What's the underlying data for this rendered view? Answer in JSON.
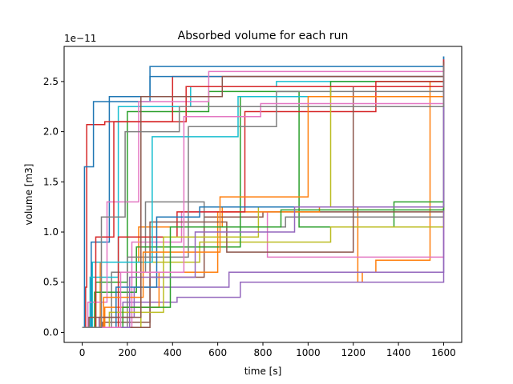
{
  "chart_data": {
    "type": "line",
    "title": "Absorbed volume for each run",
    "xlabel": "time [s]",
    "ylabel": "volume [m3]",
    "y_offset_label": "1e−11",
    "xlim": [
      -80,
      1680
    ],
    "ylim": [
      -0.1,
      2.85
    ],
    "y_scale_note": "values in units of 1e-11 m3",
    "x_ticks": [
      0,
      200,
      400,
      600,
      800,
      1000,
      1200,
      1400,
      1600
    ],
    "x_tick_labels": [
      "0",
      "200",
      "400",
      "600",
      "800",
      "1000",
      "1200",
      "1400",
      "1600"
    ],
    "y_ticks": [
      0.0,
      0.5,
      1.0,
      1.5,
      2.0,
      2.5
    ],
    "y_tick_labels": [
      "0.0",
      "0.5",
      "1.0",
      "1.5",
      "2.0",
      "2.5"
    ],
    "grid": false,
    "legend": "none",
    "palette": [
      "#1f77b4",
      "#ff7f0e",
      "#2ca02c",
      "#d62728",
      "#9467bd",
      "#8c564b",
      "#e377c2",
      "#7f7f7f",
      "#bcbd22",
      "#17becf"
    ],
    "series": [
      {
        "x": [
          0,
          40,
          120,
          300,
          1600
        ],
        "y": [
          0.05,
          0.9,
          2.35,
          2.65,
          2.75
        ]
      },
      {
        "x": [
          0,
          80,
          250,
          620,
          1220,
          1240,
          1300,
          1540,
          1600
        ],
        "y": [
          0.05,
          0.7,
          1.05,
          1.25,
          0.5,
          0.6,
          0.72,
          2.5,
          2.7
        ]
      },
      {
        "x": [
          0,
          60,
          200,
          560,
          960,
          1380,
          1600
        ],
        "y": [
          0.05,
          0.5,
          2.2,
          2.4,
          1.05,
          1.3,
          1.3
        ]
      },
      {
        "x": [
          0,
          15,
          20,
          100,
          400,
          1600
        ],
        "y": [
          0.05,
          0.45,
          2.07,
          2.1,
          2.55,
          2.7
        ]
      },
      {
        "x": [
          0,
          180,
          420,
          700,
          1600
        ],
        "y": [
          0.05,
          0.3,
          0.35,
          0.5,
          1.24
        ]
      },
      {
        "x": [
          0,
          90,
          300,
          540,
          800,
          1600
        ],
        "y": [
          0.05,
          0.1,
          0.55,
          1.15,
          1.2,
          2.7
        ]
      },
      {
        "x": [
          0,
          220,
          440,
          820,
          1600
        ],
        "y": [
          0.05,
          0.9,
          1.2,
          0.75,
          1.2
        ]
      },
      {
        "x": [
          0,
          130,
          280,
          540,
          900,
          1600
        ],
        "y": [
          0.05,
          0.6,
          1.3,
          1.05,
          1.15,
          1.22
        ]
      },
      {
        "x": [
          0,
          260,
          520,
          1100,
          1600
        ],
        "y": [
          0.05,
          0.7,
          0.9,
          1.05,
          1.28
        ]
      },
      {
        "x": [
          0,
          35,
          160,
          480,
          860,
          1600
        ],
        "y": [
          0.05,
          0.55,
          2.25,
          2.45,
          2.5,
          2.55
        ]
      },
      {
        "x": [
          0,
          10,
          50,
          300,
          1600
        ],
        "y": [
          0.05,
          1.65,
          2.3,
          2.55,
          2.75
        ]
      },
      {
        "x": [
          0,
          100,
          340,
          600,
          1050,
          1600
        ],
        "y": [
          0.05,
          0.25,
          0.6,
          1.2,
          1.25,
          2.6
        ]
      },
      {
        "x": [
          0,
          55,
          240,
          700,
          1100,
          1600
        ],
        "y": [
          0.05,
          0.4,
          0.85,
          2.35,
          2.5,
          2.6
        ]
      },
      {
        "x": [
          0,
          160,
          420,
          720,
          1300,
          1600
        ],
        "y": [
          0.05,
          0.95,
          1.2,
          2.2,
          2.5,
          2.7
        ]
      },
      {
        "x": [
          0,
          75,
          230,
          650,
          1600
        ],
        "y": [
          0.05,
          0.15,
          0.45,
          0.6,
          1.23
        ]
      },
      {
        "x": [
          0,
          300,
          640,
          1200,
          1600
        ],
        "y": [
          0.05,
          1.1,
          0.8,
          2.45,
          2.65
        ]
      },
      {
        "x": [
          0,
          25,
          110,
          250,
          560,
          1600
        ],
        "y": [
          0.05,
          0.3,
          1.3,
          2.3,
          2.6,
          2.72
        ]
      },
      {
        "x": [
          0,
          200,
          470,
          860,
          1600
        ],
        "y": [
          0.05,
          0.75,
          2.05,
          2.4,
          2.62
        ]
      },
      {
        "x": [
          0,
          120,
          360,
          780,
          1100,
          1600
        ],
        "y": [
          0.05,
          0.2,
          0.95,
          1.25,
          2.45,
          2.58
        ]
      },
      {
        "x": [
          0,
          45,
          310,
          690,
          1600
        ],
        "y": [
          0.05,
          0.7,
          1.95,
          2.35,
          2.52
        ]
      },
      {
        "x": [
          0,
          150,
          330,
          520,
          1500,
          1600
        ],
        "y": [
          0.05,
          0.45,
          1.15,
          1.25,
          1.25,
          2.55
        ]
      },
      {
        "x": [
          0,
          95,
          270,
          610,
          1000,
          1600
        ],
        "y": [
          0.05,
          0.35,
          0.8,
          1.35,
          2.35,
          2.55
        ]
      },
      {
        "x": [
          0,
          180,
          390,
          880,
          1600
        ],
        "y": [
          0.05,
          0.25,
          1.05,
          1.22,
          1.28
        ]
      },
      {
        "x": [
          0,
          60,
          140,
          460,
          1600
        ],
        "y": [
          0.05,
          0.95,
          2.1,
          2.45,
          2.72
        ]
      },
      {
        "x": [
          0,
          210,
          500,
          940,
          1600
        ],
        "y": [
          0.05,
          0.55,
          1.0,
          1.25,
          2.48
        ]
      },
      {
        "x": [
          0,
          30,
          260,
          620,
          1600
        ],
        "y": [
          0.05,
          0.15,
          2.35,
          2.55,
          2.7
        ]
      },
      {
        "x": [
          0,
          170,
          450,
          790,
          1600
        ],
        "y": [
          0.05,
          0.6,
          2.15,
          2.28,
          2.6
        ]
      },
      {
        "x": [
          0,
          85,
          190,
          430,
          1600
        ],
        "y": [
          0.05,
          1.15,
          2.0,
          2.25,
          2.66
        ]
      }
    ]
  }
}
